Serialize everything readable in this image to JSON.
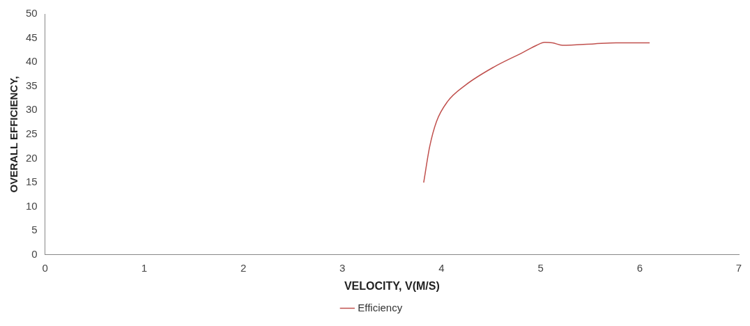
{
  "chart_data": {
    "type": "line",
    "xlabel": "VELOCITY, V(M/S)",
    "ylabel": "OVERALL EFFICIENCY,",
    "series": [
      {
        "name": "Efficiency",
        "color": "#c0504d",
        "x": [
          3.82,
          3.88,
          3.95,
          4.06,
          4.24,
          4.53,
          4.82,
          4.96,
          5.04,
          5.12,
          5.22,
          5.54,
          5.76,
          6.1
        ],
        "values": [
          15,
          22.4,
          27.7,
          31.8,
          35.2,
          39,
          42,
          43.5,
          44.1,
          44,
          43.5,
          43.8,
          44,
          44
        ]
      }
    ],
    "xlim": [
      0,
      7
    ],
    "xticks": [
      0,
      1,
      2,
      3,
      4,
      5,
      6,
      7
    ],
    "ylim": [
      0,
      50
    ],
    "yticks": [
      0,
      5,
      10,
      15,
      20,
      25,
      30,
      35,
      40,
      45,
      50
    ],
    "grid": false,
    "legend": "bottom",
    "marker": "none",
    "line_style": "solid"
  }
}
